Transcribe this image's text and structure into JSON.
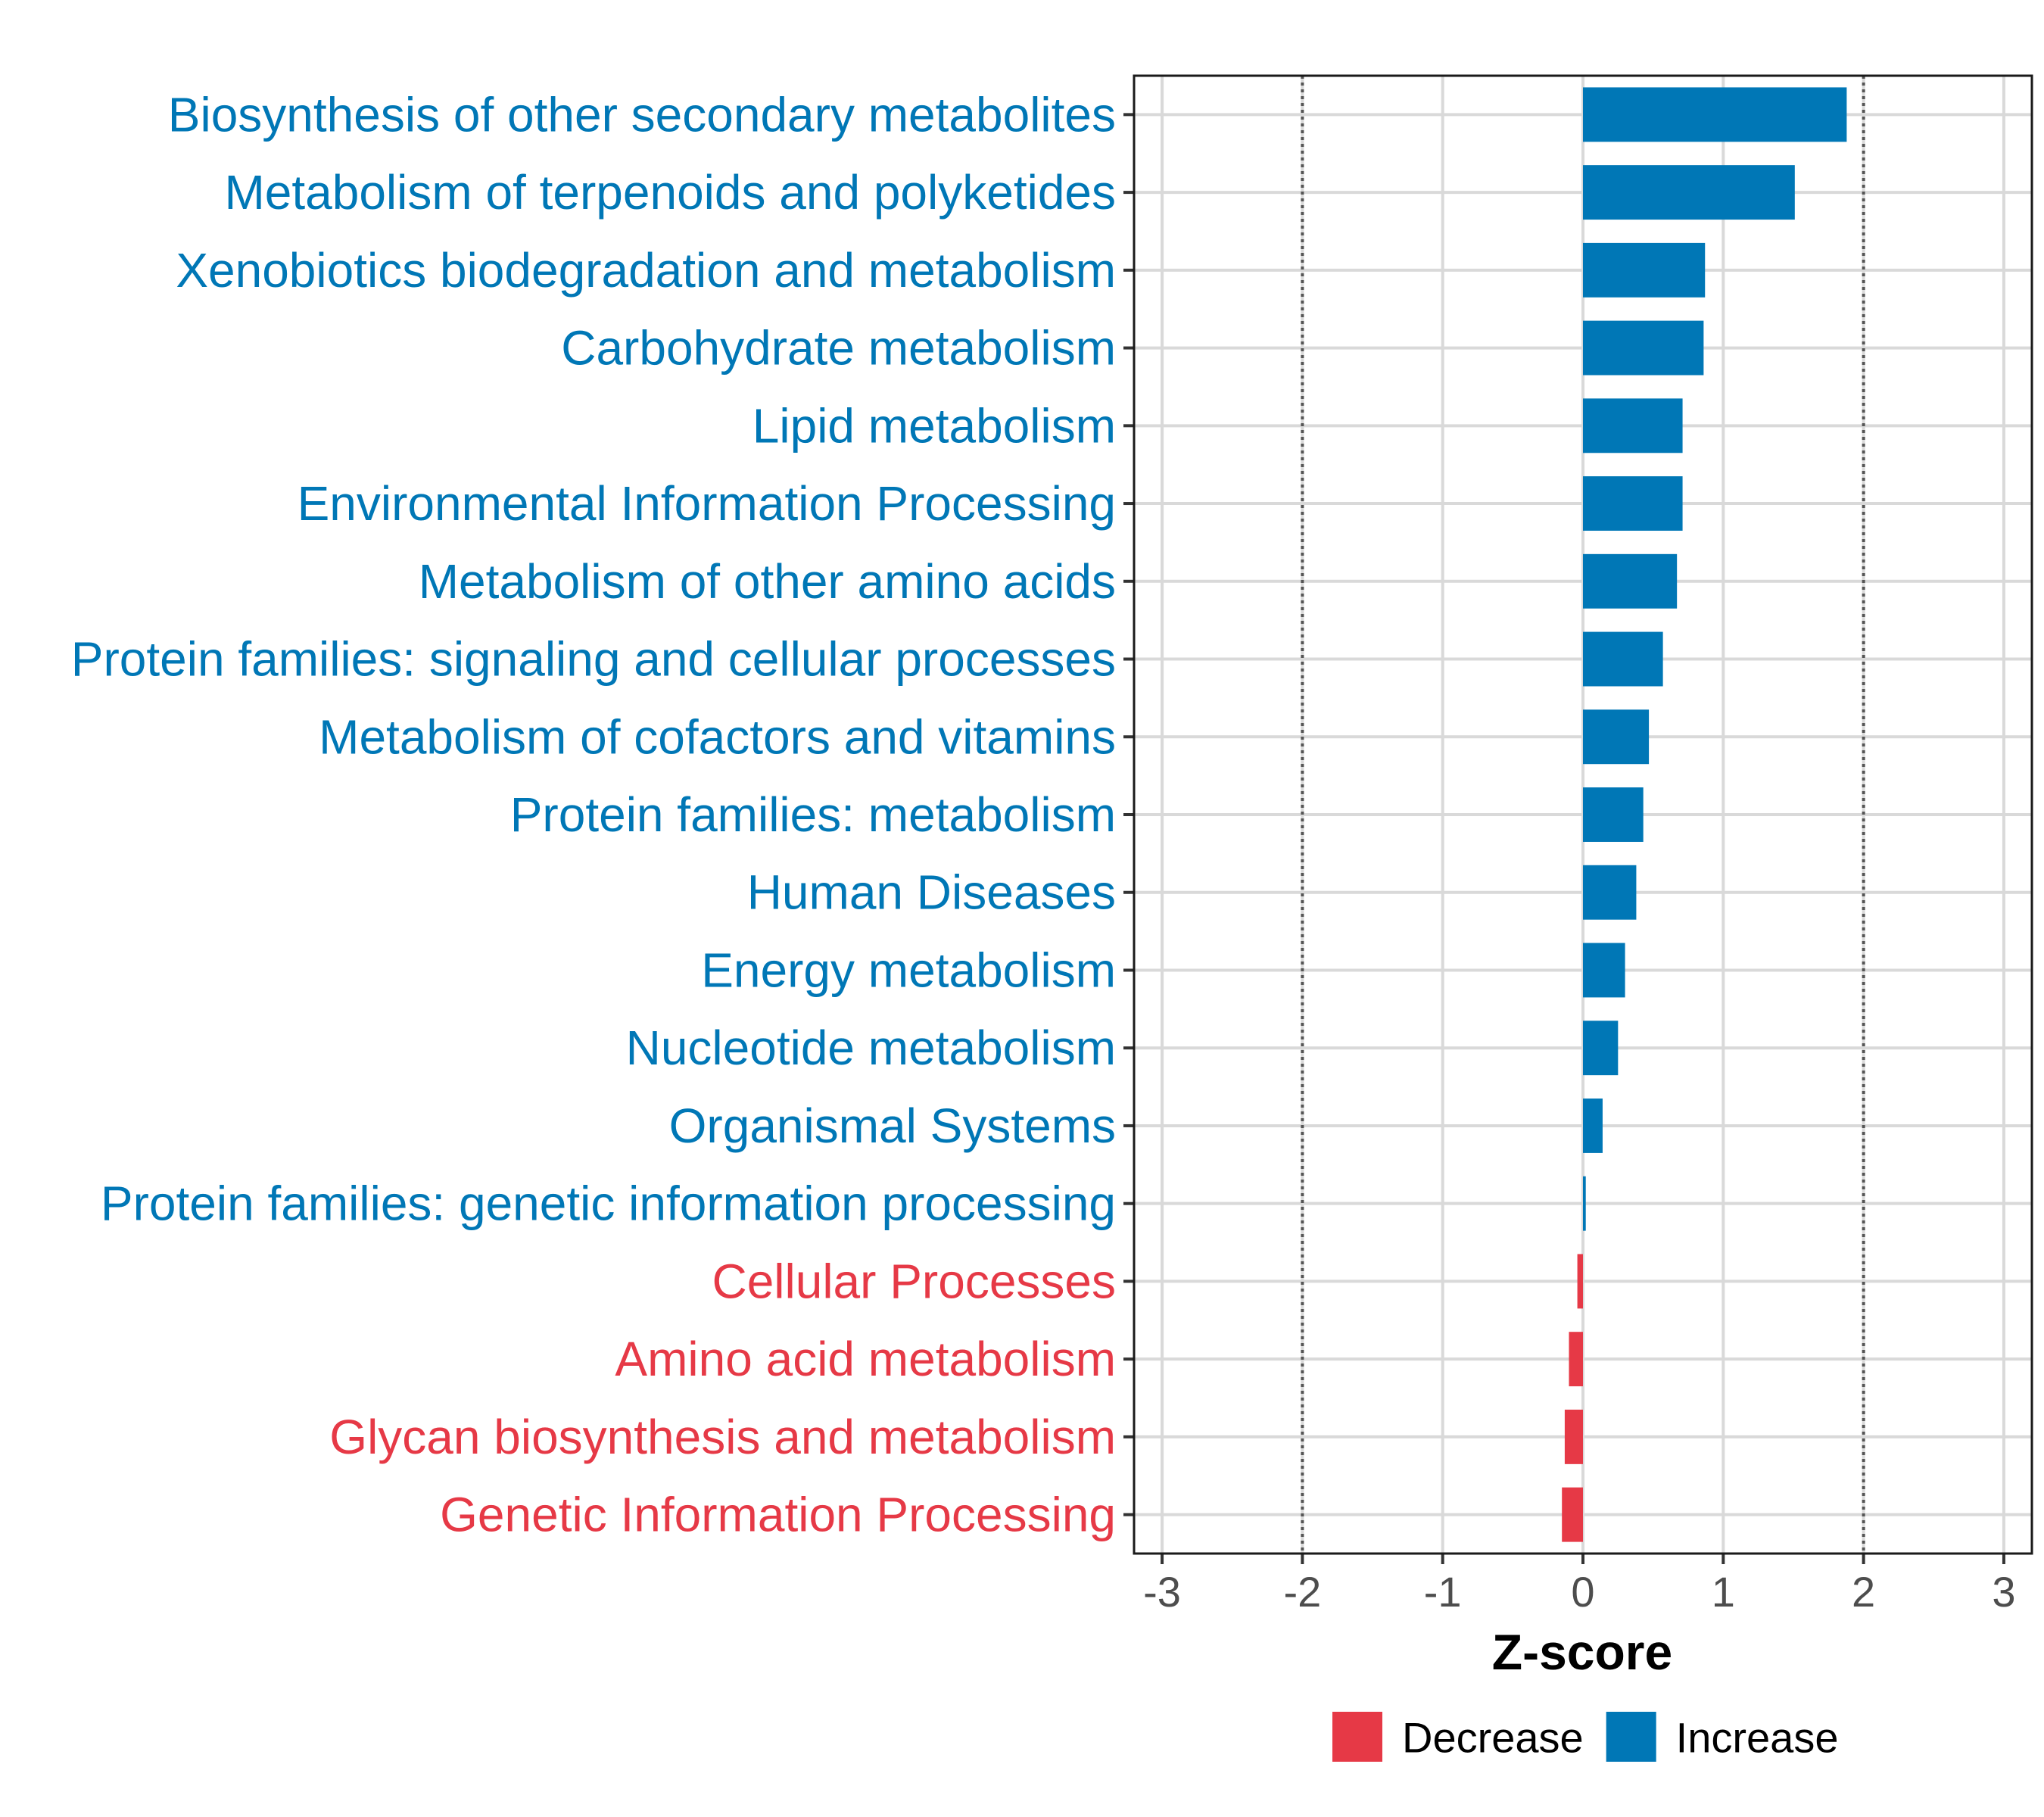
{
  "chart_data": {
    "type": "bar",
    "orientation": "horizontal",
    "xlabel": "Z-score",
    "xlim": [
      -3.2,
      3.2
    ],
    "xticks": [
      -3,
      -2,
      -1,
      0,
      1,
      2,
      3
    ],
    "xtick_labels": [
      "-3",
      "-2",
      "-1",
      "0",
      "1",
      "2",
      "3"
    ],
    "reference_lines": [
      -2,
      2
    ],
    "grid": true,
    "legend_position": "bottom",
    "colors": {
      "Decrease": "#e63946",
      "Increase": "#0077b6"
    },
    "legend": [
      {
        "label": "Decrease",
        "color": "#e63946"
      },
      {
        "label": "Increase",
        "color": "#0077b6"
      }
    ],
    "bars": [
      {
        "category": "Biosynthesis of other secondary metabolites",
        "value": 1.88,
        "group": "Increase"
      },
      {
        "category": "Metabolism of terpenoids and polyketides",
        "value": 1.51,
        "group": "Increase"
      },
      {
        "category": "Xenobiotics biodegradation and metabolism",
        "value": 0.87,
        "group": "Increase"
      },
      {
        "category": "Carbohydrate metabolism",
        "value": 0.86,
        "group": "Increase"
      },
      {
        "category": "Lipid metabolism",
        "value": 0.71,
        "group": "Increase"
      },
      {
        "category": "Environmental Information Processing",
        "value": 0.71,
        "group": "Increase"
      },
      {
        "category": "Metabolism of other amino acids",
        "value": 0.67,
        "group": "Increase"
      },
      {
        "category": "Protein families: signaling and cellular processes",
        "value": 0.57,
        "group": "Increase"
      },
      {
        "category": "Metabolism of cofactors and vitamins",
        "value": 0.47,
        "group": "Increase"
      },
      {
        "category": "Protein families: metabolism",
        "value": 0.43,
        "group": "Increase"
      },
      {
        "category": "Human Diseases",
        "value": 0.38,
        "group": "Increase"
      },
      {
        "category": "Energy metabolism",
        "value": 0.3,
        "group": "Increase"
      },
      {
        "category": "Nucleotide metabolism",
        "value": 0.25,
        "group": "Increase"
      },
      {
        "category": "Organismal Systems",
        "value": 0.14,
        "group": "Increase"
      },
      {
        "category": "Protein families: genetic information processing",
        "value": 0.02,
        "group": "Increase"
      },
      {
        "category": "Cellular Processes",
        "value": -0.04,
        "group": "Decrease"
      },
      {
        "category": "Amino acid metabolism",
        "value": -0.1,
        "group": "Decrease"
      },
      {
        "category": "Glycan biosynthesis and metabolism",
        "value": -0.13,
        "group": "Decrease"
      },
      {
        "category": "Genetic Information Processing",
        "value": -0.15,
        "group": "Decrease"
      }
    ]
  }
}
